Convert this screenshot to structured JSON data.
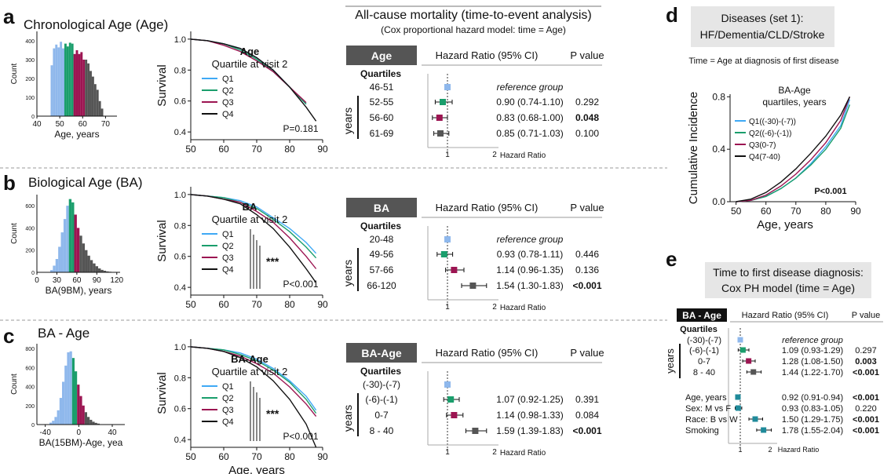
{
  "colors": {
    "q1": "#8fb8ec",
    "q2": "#1a9e6c",
    "q3": "#9c1552",
    "q4": "#555555",
    "q4line": "#111111",
    "q1line": "#3fa9f5",
    "teal": "#1f8a9a",
    "tableHeader": "#555555",
    "boxGrey": "#e6e6e6"
  },
  "panels": {
    "a": {
      "letter": "a",
      "title": "Chronological Age (Age)",
      "hist": {
        "ylabel": "Count",
        "xlabel": "Age, years",
        "xticks": [
          "40",
          "50",
          "60",
          "70"
        ],
        "yticks": [
          "0",
          "100",
          "200",
          "300",
          "400"
        ]
      },
      "surv": {
        "ylabel": "Survival",
        "legend_title": "Age",
        "legend_sub": "Quartile at visit 2",
        "legend": [
          "Q1",
          "Q2",
          "Q3",
          "Q4"
        ],
        "pvalue": "P=0.181",
        "xticks": [
          "50",
          "60",
          "70",
          "80",
          "90"
        ],
        "yticks": [
          "1.0",
          "0.8",
          "0.6",
          "0.4"
        ],
        "stars": ""
      },
      "forest": {
        "header": "Age",
        "group_label": "Quartiles",
        "years_label": "years",
        "col_hr": "Hazard Ratio (95% CI)",
        "col_p": "P value",
        "rows": [
          {
            "label": "46-51",
            "hr": "reference group",
            "p": "",
            "bold": false
          },
          {
            "label": "52-55",
            "hr": "0.90 (0.74-1.10)",
            "p": "0.292",
            "bold": false
          },
          {
            "label": "56-60",
            "hr": "0.83 (0.68-1.00)",
            "p": "0.048",
            "bold": true
          },
          {
            "label": "61-69",
            "hr": "0.85 (0.71-1.03)",
            "p": "0.100",
            "bold": false
          }
        ],
        "axis_label": "Hazard Ratio",
        "ticks": [
          "1",
          "2"
        ]
      }
    },
    "b": {
      "letter": "b",
      "title": "Biological Age (BA)",
      "hist": {
        "ylabel": "Count",
        "xlabel": "BA(9BM), years",
        "xticks": [
          "0",
          "30",
          "60",
          "90",
          "120"
        ],
        "yticks": [
          "0",
          "200",
          "400",
          "600"
        ]
      },
      "surv": {
        "ylabel": "Survival",
        "legend_title": "BA",
        "legend_sub": "Quartile at visit 2",
        "legend": [
          "Q1",
          "Q2",
          "Q3",
          "Q4"
        ],
        "pvalue": "P<0.001",
        "xticks": [
          "50",
          "60",
          "70",
          "80",
          "90"
        ],
        "yticks": [
          "1.0",
          "0.8",
          "0.6",
          "0.4"
        ],
        "stars": "***"
      },
      "forest": {
        "header": "BA",
        "group_label": "Quartiles",
        "years_label": "years",
        "col_hr": "Hazard Ratio (95% CI)",
        "col_p": "P value",
        "rows": [
          {
            "label": "20-48",
            "hr": "reference group",
            "p": "",
            "bold": false
          },
          {
            "label": "49-56",
            "hr": "0.93 (0.78-1.11)",
            "p": "0.446",
            "bold": false
          },
          {
            "label": "57-66",
            "hr": "1.14 (0.96-1.35)",
            "p": "0.136",
            "bold": false
          },
          {
            "label": "66-120",
            "hr": "1.54 (1.30-1.83)",
            "p": "<0.001",
            "bold": true
          }
        ],
        "axis_label": "Hazard Ratio",
        "ticks": [
          "1",
          "2"
        ]
      }
    },
    "c": {
      "letter": "c",
      "title": "BA - Age",
      "hist": {
        "ylabel": "Count",
        "xlabel": "BA(15BM)-Age, yea",
        "xticks": [
          "-40",
          "0",
          "40"
        ],
        "yticks": [
          "0",
          "200",
          "400",
          "600",
          "800"
        ]
      },
      "surv": {
        "ylabel": "Survival",
        "legend_title": "BA-Age",
        "legend_sub": "Quartile at visit 2",
        "legend": [
          "Q1",
          "Q2",
          "Q3",
          "Q4"
        ],
        "pvalue": "P<0.001",
        "xticks": [
          "50",
          "60",
          "70",
          "80",
          "90"
        ],
        "yticks": [
          "1.0",
          "0.8",
          "0.6",
          "0.4"
        ],
        "stars": "***",
        "xlabel": "Age, years"
      },
      "forest": {
        "header": "BA-Age",
        "group_label": "Quartiles",
        "years_label": "years",
        "col_hr": "Hazard Ratio (95% CI)",
        "col_p": "P value",
        "rows": [
          {
            "label": "(-30)-(-7)",
            "hr": "",
            "p": "",
            "bold": false
          },
          {
            "label": "(-6)-(-1)",
            "hr": "1.07 (0.92-1.25)",
            "p": "0.391",
            "bold": false
          },
          {
            "label": "0-7",
            "hr": "1.14 (0.98-1.33)",
            "p": "0.084",
            "bold": false
          },
          {
            "label": "8 - 40",
            "hr": "1.59 (1.39-1.83)",
            "p": "<0.001",
            "bold": true
          }
        ],
        "axis_label": "Hazard Ratio",
        "ticks": [
          "1",
          "2"
        ]
      }
    },
    "mortality": {
      "title": "All-cause mortality (time-to-event analysis)",
      "subtitle": "(Cox proportional hazard model: time = Age)"
    },
    "d": {
      "letter": "d",
      "box_line1": "Diseases (set 1):",
      "box_line2": "HF/Dementia/CLD/Stroke",
      "note": "Time = Age at diagnosis of first disease",
      "ylabel": "Cumulative Incidence",
      "xlabel": "Age, years",
      "legend_title1": "BA-Age",
      "legend_title2": "quartiles, years",
      "legend": [
        "Q1((-30)-(-7))",
        "Q2((-6)-(-1))",
        "Q3(0-7)",
        "Q4(7-40)"
      ],
      "pvalue": "P<0.001",
      "xticks": [
        "50",
        "60",
        "70",
        "80",
        "90"
      ],
      "yticks": [
        "0.0",
        "0.4",
        "0.8"
      ]
    },
    "e": {
      "letter": "e",
      "box_line1": "Time to first disease diagnosis:",
      "box_line2": "Cox PH model (time = Age)",
      "header": "BA - Age",
      "group_label": "Quartiles",
      "years_label": "years",
      "col_hr": "Hazard Ratio (95% CI)",
      "col_p": "P value",
      "rows": [
        {
          "label": "(-30)-(-7)",
          "hr": "reference group",
          "p": "",
          "bold": false
        },
        {
          "label": "(-6)-(-1)",
          "hr": "1.09 (0.93-1.29)",
          "p": "0.297",
          "bold": false
        },
        {
          "label": "0-7",
          "hr": "1.28 (1.08-1.50)",
          "p": "0.003",
          "bold": true
        },
        {
          "label": "8 - 40",
          "hr": "1.44 (1.22-1.70)",
          "p": "<0.001",
          "bold": true
        },
        {
          "label": "Age, years",
          "hr": "0.92 (0.91-0.94)",
          "p": "<0.001",
          "bold": true
        },
        {
          "label": "Sex: M vs F",
          "hr": "0.93 (0.83-1.05)",
          "p": "0.220",
          "bold": false
        },
        {
          "label": "Race: B vs W",
          "hr": "1.50 (1.29-1.75)",
          "p": "<0.001",
          "bold": true
        },
        {
          "label": "Smoking",
          "hr": "1.78 (1.55-2.04)",
          "p": "<0.001",
          "bold": true
        }
      ],
      "axis_label": "Hazard Ratio",
      "ticks": [
        "1",
        "2"
      ]
    }
  },
  "chart_data": [
    {
      "type": "bar",
      "panel": "a-histogram",
      "title": "Chronological Age (Age)",
      "xlabel": "Age, years",
      "ylabel": "Count",
      "xlim": [
        40,
        75
      ],
      "ylim": [
        0,
        450
      ],
      "bins_start": 46,
      "bin_width": 1,
      "values": [
        270,
        360,
        380,
        365,
        395,
        360,
        385,
        370,
        390,
        385,
        330,
        350,
        330,
        340,
        300,
        300,
        280,
        240,
        210,
        170,
        140,
        80,
        40
      ],
      "quartile_edges": [
        46,
        52,
        56,
        61,
        69
      ]
    },
    {
      "type": "line",
      "panel": "a-survival",
      "xlabel": "",
      "ylabel": "Survival",
      "xlim": [
        50,
        90
      ],
      "ylim": [
        0.35,
        1.05
      ],
      "pvalue": "P=0.181",
      "series": [
        {
          "name": "Q1",
          "x": [
            50,
            55,
            60,
            65,
            70,
            75,
            80,
            85
          ],
          "y": [
            1.0,
            0.99,
            0.97,
            0.94,
            0.88,
            0.8,
            0.69,
            0.58
          ]
        },
        {
          "name": "Q2",
          "x": [
            50,
            55,
            60,
            65,
            70,
            75,
            80,
            85
          ],
          "y": [
            1.0,
            0.99,
            0.97,
            0.93,
            0.87,
            0.79,
            0.69,
            0.58
          ]
        },
        {
          "name": "Q3",
          "x": [
            50,
            55,
            60,
            65,
            70,
            75,
            80,
            85
          ],
          "y": [
            1.0,
            0.99,
            0.96,
            0.92,
            0.86,
            0.79,
            0.69,
            0.59
          ]
        },
        {
          "name": "Q4",
          "x": [
            50,
            55,
            60,
            65,
            70,
            75,
            80,
            85,
            88
          ],
          "y": [
            1.0,
            0.99,
            0.97,
            0.94,
            0.88,
            0.8,
            0.69,
            0.56,
            0.47
          ]
        }
      ]
    },
    {
      "type": "scatter",
      "panel": "a-forest",
      "categories": [
        "46-51",
        "52-55",
        "56-60",
        "61-69"
      ],
      "hr": [
        1.0,
        0.9,
        0.83,
        0.85
      ],
      "ci_low": [
        1.0,
        0.74,
        0.68,
        0.71
      ],
      "ci_high": [
        1.0,
        1.1,
        1.0,
        1.03
      ],
      "p": [
        "",
        "0.292",
        "0.048",
        "0.100"
      ]
    },
    {
      "type": "bar",
      "panel": "b-histogram",
      "title": "Biological Age (BA)",
      "xlabel": "BA(9BM), years",
      "ylabel": "Count",
      "xlim": [
        0,
        125
      ],
      "ylim": [
        0,
        700
      ],
      "bins_start": 20,
      "bin_width": 4,
      "values": [
        20,
        60,
        120,
        230,
        360,
        480,
        600,
        660,
        630,
        520,
        400,
        330,
        260,
        200,
        150,
        110,
        80,
        55,
        35,
        22,
        14,
        8,
        5
      ],
      "quartile_edges": [
        20,
        48,
        56,
        66,
        120
      ]
    },
    {
      "type": "line",
      "panel": "b-survival",
      "ylabel": "Survival",
      "xlim": [
        50,
        90
      ],
      "ylim": [
        0.35,
        1.05
      ],
      "pvalue": "P<0.001",
      "series": [
        {
          "name": "Q1",
          "x": [
            50,
            55,
            60,
            65,
            70,
            75,
            80,
            85,
            88
          ],
          "y": [
            1.0,
            0.99,
            0.98,
            0.96,
            0.92,
            0.85,
            0.78,
            0.69,
            0.62
          ]
        },
        {
          "name": "Q2",
          "x": [
            50,
            55,
            60,
            65,
            70,
            75,
            80,
            85,
            88
          ],
          "y": [
            1.0,
            0.99,
            0.98,
            0.95,
            0.91,
            0.84,
            0.76,
            0.66,
            0.59
          ]
        },
        {
          "name": "Q3",
          "x": [
            50,
            55,
            60,
            65,
            70,
            75,
            80,
            85,
            88
          ],
          "y": [
            1.0,
            0.99,
            0.97,
            0.95,
            0.89,
            0.82,
            0.72,
            0.6,
            0.52
          ]
        },
        {
          "name": "Q4",
          "x": [
            50,
            55,
            60,
            65,
            70,
            75,
            80,
            85,
            88
          ],
          "y": [
            1.0,
            0.99,
            0.97,
            0.94,
            0.87,
            0.78,
            0.66,
            0.52,
            0.43
          ]
        }
      ]
    },
    {
      "type": "scatter",
      "panel": "b-forest",
      "categories": [
        "20-48",
        "49-56",
        "57-66",
        "66-120"
      ],
      "hr": [
        1.0,
        0.93,
        1.14,
        1.54
      ],
      "ci_low": [
        1.0,
        0.78,
        0.96,
        1.3
      ],
      "ci_high": [
        1.0,
        1.11,
        1.35,
        1.83
      ],
      "p": [
        "",
        "0.446",
        "0.136",
        "<0.001"
      ]
    },
    {
      "type": "bar",
      "panel": "c-histogram",
      "title": "BA - Age",
      "xlabel": "BA(15BM)-Age, yea",
      "ylabel": "Count",
      "xlim": [
        -50,
        55
      ],
      "ylim": [
        0,
        850
      ],
      "bins_start": -35,
      "bin_width": 3,
      "values": [
        20,
        40,
        80,
        150,
        280,
        450,
        620,
        760,
        770,
        700,
        560,
        420,
        300,
        200,
        130,
        80,
        50,
        30,
        18,
        10
      ],
      "quartile_edges": [
        -30,
        -7,
        -1,
        7,
        40
      ]
    },
    {
      "type": "line",
      "panel": "c-survival",
      "xlabel": "Age, years",
      "ylabel": "Survival",
      "xlim": [
        50,
        90
      ],
      "ylim": [
        0.35,
        1.05
      ],
      "pvalue": "P<0.001",
      "series": [
        {
          "name": "Q1",
          "x": [
            50,
            55,
            60,
            65,
            70,
            75,
            80,
            85,
            88
          ],
          "y": [
            1.0,
            0.99,
            0.98,
            0.96,
            0.92,
            0.86,
            0.78,
            0.68,
            0.59
          ]
        },
        {
          "name": "Q2",
          "x": [
            50,
            55,
            60,
            65,
            70,
            75,
            80,
            85,
            88
          ],
          "y": [
            1.0,
            0.99,
            0.98,
            0.95,
            0.91,
            0.85,
            0.77,
            0.66,
            0.57
          ]
        },
        {
          "name": "Q3",
          "x": [
            50,
            55,
            60,
            65,
            70,
            75,
            80,
            85,
            88
          ],
          "y": [
            1.0,
            0.99,
            0.97,
            0.94,
            0.89,
            0.83,
            0.74,
            0.63,
            0.55
          ]
        },
        {
          "name": "Q4",
          "x": [
            50,
            55,
            60,
            65,
            70,
            75,
            80,
            85,
            88
          ],
          "y": [
            1.0,
            0.99,
            0.97,
            0.93,
            0.87,
            0.78,
            0.66,
            0.5,
            0.35
          ]
        }
      ]
    },
    {
      "type": "scatter",
      "panel": "c-forest",
      "categories": [
        "(-30)-(-7)",
        "(-6)-(-1)",
        "0-7",
        "8 - 40"
      ],
      "hr": [
        1.0,
        1.07,
        1.14,
        1.59
      ],
      "ci_low": [
        1.0,
        0.92,
        0.98,
        1.39
      ],
      "ci_high": [
        1.0,
        1.25,
        1.33,
        1.83
      ],
      "p": [
        "",
        "0.391",
        "0.084",
        "<0.001"
      ]
    },
    {
      "type": "line",
      "panel": "d-cumulative-incidence",
      "title": "Diseases (set 1): HF/Dementia/CLD/Stroke",
      "xlabel": "Age, years",
      "ylabel": "Cumulative Incidence",
      "xlim": [
        48,
        90
      ],
      "ylim": [
        0,
        0.82
      ],
      "pvalue": "P<0.001",
      "series": [
        {
          "name": "Q1((-30)-(-7))",
          "x": [
            50,
            55,
            60,
            65,
            70,
            75,
            80,
            85,
            88
          ],
          "y": [
            0.0,
            0.01,
            0.04,
            0.1,
            0.18,
            0.29,
            0.42,
            0.58,
            0.78
          ]
        },
        {
          "name": "Q2((-6)-(-1))",
          "x": [
            50,
            55,
            60,
            65,
            70,
            75,
            80,
            85,
            88
          ],
          "y": [
            0.0,
            0.01,
            0.04,
            0.1,
            0.18,
            0.28,
            0.4,
            0.56,
            0.74
          ]
        },
        {
          "name": "Q3(0-7)",
          "x": [
            50,
            55,
            60,
            65,
            70,
            75,
            80,
            85,
            88
          ],
          "y": [
            0.0,
            0.01,
            0.05,
            0.12,
            0.21,
            0.32,
            0.45,
            0.62,
            0.8
          ]
        },
        {
          "name": "Q4(7-40)",
          "x": [
            50,
            55,
            60,
            65,
            70,
            75,
            80,
            85,
            88
          ],
          "y": [
            0.0,
            0.02,
            0.07,
            0.15,
            0.25,
            0.37,
            0.5,
            0.66,
            0.8
          ]
        }
      ]
    },
    {
      "type": "scatter",
      "panel": "e-forest",
      "categories": [
        "(-30)-(-7)",
        "(-6)-(-1)",
        "0-7",
        "8 - 40",
        "Age, years",
        "Sex: M vs F",
        "Race: B vs W",
        "Smoking"
      ],
      "hr": [
        1.0,
        1.09,
        1.28,
        1.44,
        0.92,
        0.93,
        1.5,
        1.78
      ],
      "ci_low": [
        1.0,
        0.93,
        1.08,
        1.22,
        0.91,
        0.83,
        1.29,
        1.55
      ],
      "ci_high": [
        1.0,
        1.29,
        1.5,
        1.7,
        0.94,
        1.05,
        1.75,
        2.04
      ],
      "p": [
        "",
        "0.297",
        "0.003",
        "<0.001",
        "<0.001",
        "0.220",
        "<0.001",
        "<0.001"
      ]
    }
  ]
}
